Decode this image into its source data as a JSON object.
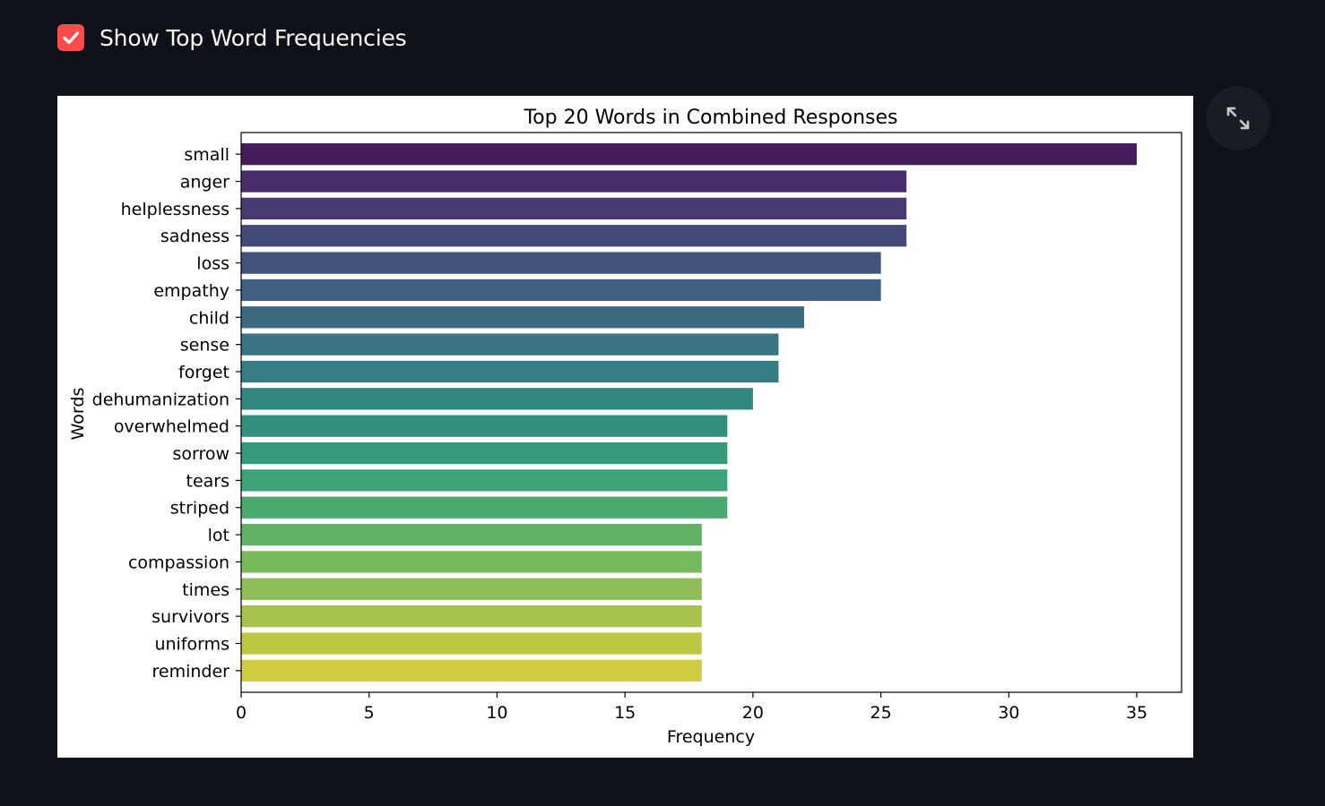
{
  "checkbox": {
    "label": "Show Top Word Frequencies",
    "checked": true,
    "color": "#ff4b4b"
  },
  "expand_button": {
    "icon": "expand-icon"
  },
  "chart_data": {
    "type": "bar",
    "orientation": "horizontal",
    "title": "Top 20 Words in Combined Responses",
    "xlabel": "Frequency",
    "ylabel": "Words",
    "xlim": [
      0,
      36.75
    ],
    "xticks": [
      0,
      5,
      10,
      15,
      20,
      25,
      30,
      35
    ],
    "grid": false,
    "colormap": "viridis",
    "categories": [
      "small",
      "anger",
      "helplessness",
      "sadness",
      "loss",
      "empathy",
      "child",
      "sense",
      "forget",
      "dehumanization",
      "overwhelmed",
      "sorrow",
      "tears",
      "striped",
      "lot",
      "compassion",
      "times",
      "survivors",
      "uniforms",
      "reminder"
    ],
    "values": [
      35,
      26,
      26,
      26,
      25,
      25,
      22,
      21,
      21,
      20,
      19,
      19,
      19,
      19,
      18,
      18,
      18,
      18,
      18,
      18
    ],
    "colors": [
      "#471c5b",
      "#482e6a",
      "#483a71",
      "#454a79",
      "#42547c",
      "#3e5f80",
      "#3b6a81",
      "#387482",
      "#357c83",
      "#328782",
      "#32907f",
      "#36997b",
      "#3da276",
      "#4ba86f",
      "#61b166",
      "#79b95d",
      "#8fbe58",
      "#a7c34e",
      "#bdc842",
      "#cfcc42"
    ]
  }
}
